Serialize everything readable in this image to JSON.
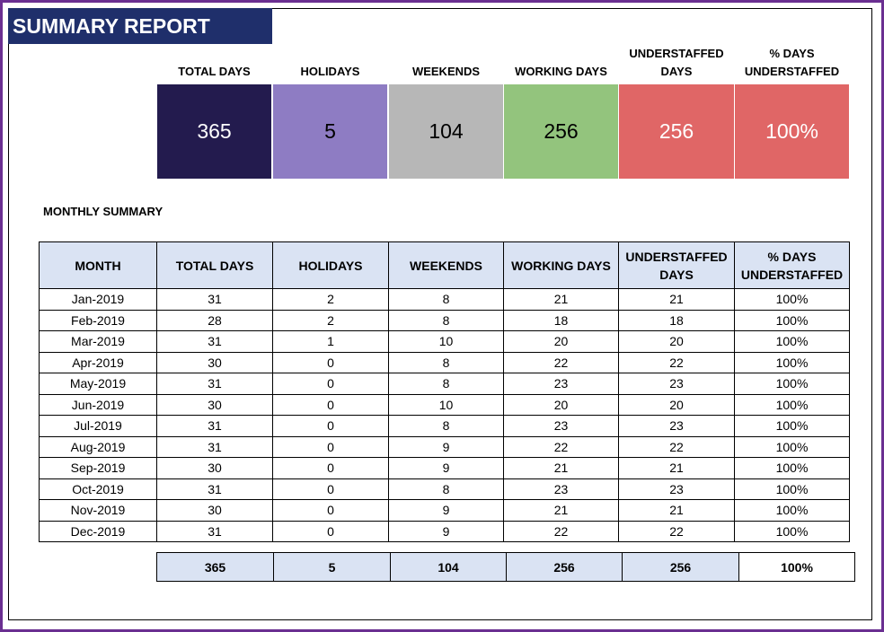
{
  "title": "SUMMARY REPORT",
  "kpis": [
    {
      "label": "TOTAL DAYS",
      "value": "365",
      "bg": "#231b4e",
      "fg": "#ffffff"
    },
    {
      "label": "HOLIDAYS",
      "value": "5",
      "bg": "#8e7cc3",
      "fg": "#000000"
    },
    {
      "label": "WEEKENDS",
      "value": "104",
      "bg": "#b7b7b7",
      "fg": "#000000"
    },
    {
      "label": "WORKING DAYS",
      "value": "256",
      "bg": "#93c47d",
      "fg": "#000000"
    },
    {
      "label": "UNDERSTAFFED DAYS",
      "value": "256",
      "bg": "#e06666",
      "fg": "#ffffff"
    },
    {
      "label": "% DAYS UNDERSTAFFED",
      "value": "100%",
      "bg": "#e06666",
      "fg": "#ffffff"
    }
  ],
  "monthly_label": "MONTHLY SUMMARY",
  "columns": [
    "MONTH",
    "TOTAL DAYS",
    "HOLIDAYS",
    "WEEKENDS",
    "WORKING DAYS",
    "UNDERSTAFFED DAYS",
    "% DAYS UNDERSTAFFED"
  ],
  "rows": [
    [
      "Jan-2019",
      "31",
      "2",
      "8",
      "21",
      "21",
      "100%"
    ],
    [
      "Feb-2019",
      "28",
      "2",
      "8",
      "18",
      "18",
      "100%"
    ],
    [
      "Mar-2019",
      "31",
      "1",
      "10",
      "20",
      "20",
      "100%"
    ],
    [
      "Apr-2019",
      "30",
      "0",
      "8",
      "22",
      "22",
      "100%"
    ],
    [
      "May-2019",
      "31",
      "0",
      "8",
      "23",
      "23",
      "100%"
    ],
    [
      "Jun-2019",
      "30",
      "0",
      "10",
      "20",
      "20",
      "100%"
    ],
    [
      "Jul-2019",
      "31",
      "0",
      "8",
      "23",
      "23",
      "100%"
    ],
    [
      "Aug-2019",
      "31",
      "0",
      "9",
      "22",
      "22",
      "100%"
    ],
    [
      "Sep-2019",
      "30",
      "0",
      "9",
      "21",
      "21",
      "100%"
    ],
    [
      "Oct-2019",
      "31",
      "0",
      "8",
      "23",
      "23",
      "100%"
    ],
    [
      "Nov-2019",
      "30",
      "0",
      "9",
      "21",
      "21",
      "100%"
    ],
    [
      "Dec-2019",
      "31",
      "0",
      "9",
      "22",
      "22",
      "100%"
    ]
  ],
  "totals": [
    "365",
    "5",
    "104",
    "256",
    "256",
    "100%"
  ],
  "colors": {
    "header_bg": "#dae3f3",
    "title_bg": "#1f2f6b",
    "frame": "#6a2f91"
  }
}
